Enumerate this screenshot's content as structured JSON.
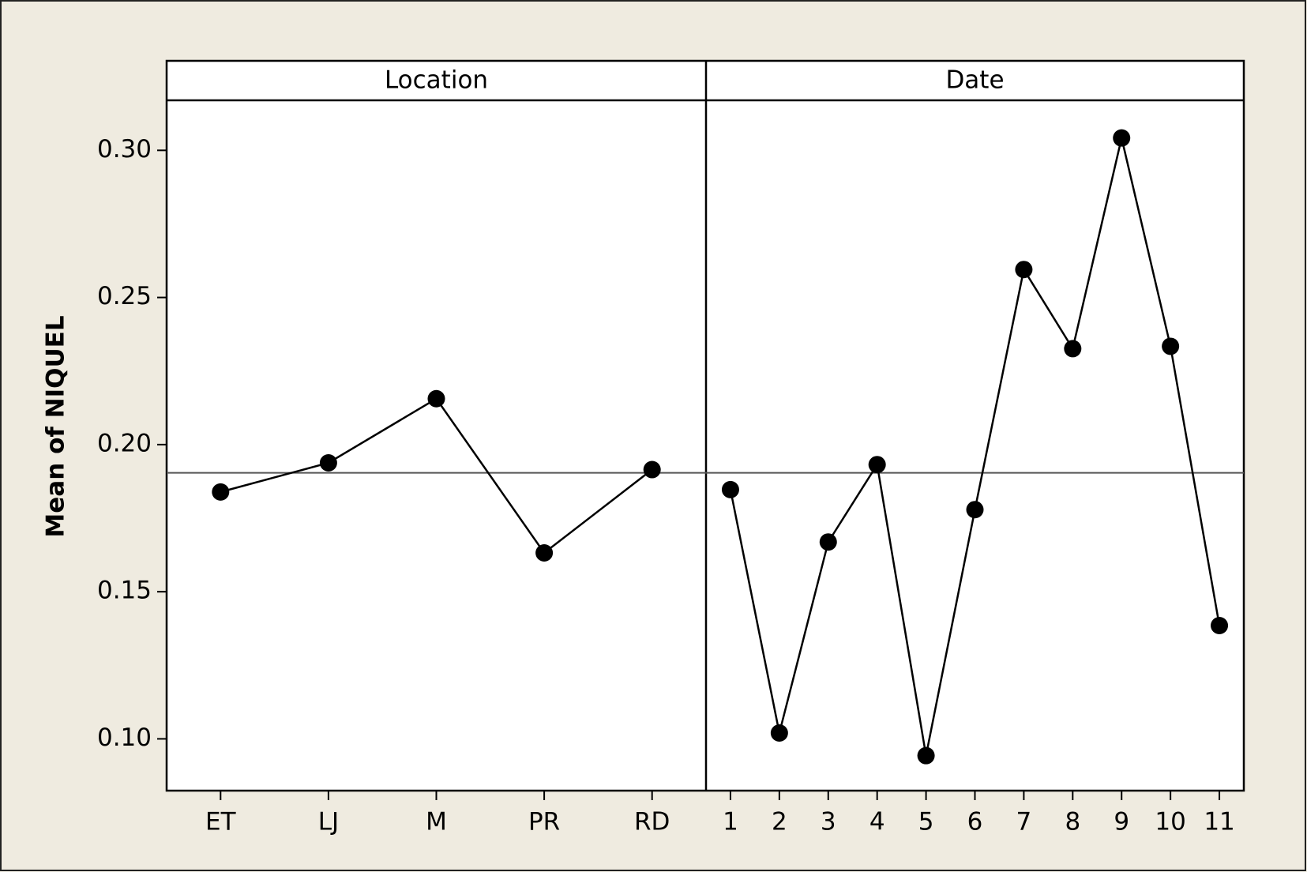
{
  "chart_data": [
    {
      "type": "line",
      "title": "Location",
      "y_label": "Mean of NIQUEL",
      "categories": [
        "ET",
        "LJ",
        "M",
        "PR",
        "RD"
      ],
      "values": [
        0.1839,
        0.1938,
        0.2156,
        0.1632,
        0.1915
      ],
      "mean_line": 0.1904,
      "color": "#000000",
      "ylim": [
        0.0824,
        0.317
      ],
      "yticks": [
        {
          "value": 0.1,
          "label": "0.10"
        },
        {
          "value": 0.15,
          "label": "0.15"
        },
        {
          "value": 0.2,
          "label": "0.20"
        },
        {
          "value": 0.25,
          "label": "0.25"
        },
        {
          "value": 0.3,
          "label": "0.30"
        }
      ]
    },
    {
      "type": "line",
      "title": "Date",
      "categories": [
        "1",
        "2",
        "3",
        "4",
        "5",
        "6",
        "7",
        "8",
        "9",
        "10",
        "11"
      ],
      "values": [
        0.1847,
        0.102,
        0.1669,
        0.1932,
        0.0943,
        0.1779,
        0.2595,
        0.2326,
        0.3042,
        0.2334,
        0.1385
      ],
      "mean_line": 0.1904,
      "color": "#000000",
      "ylim": [
        0.0824,
        0.317
      ]
    }
  ]
}
